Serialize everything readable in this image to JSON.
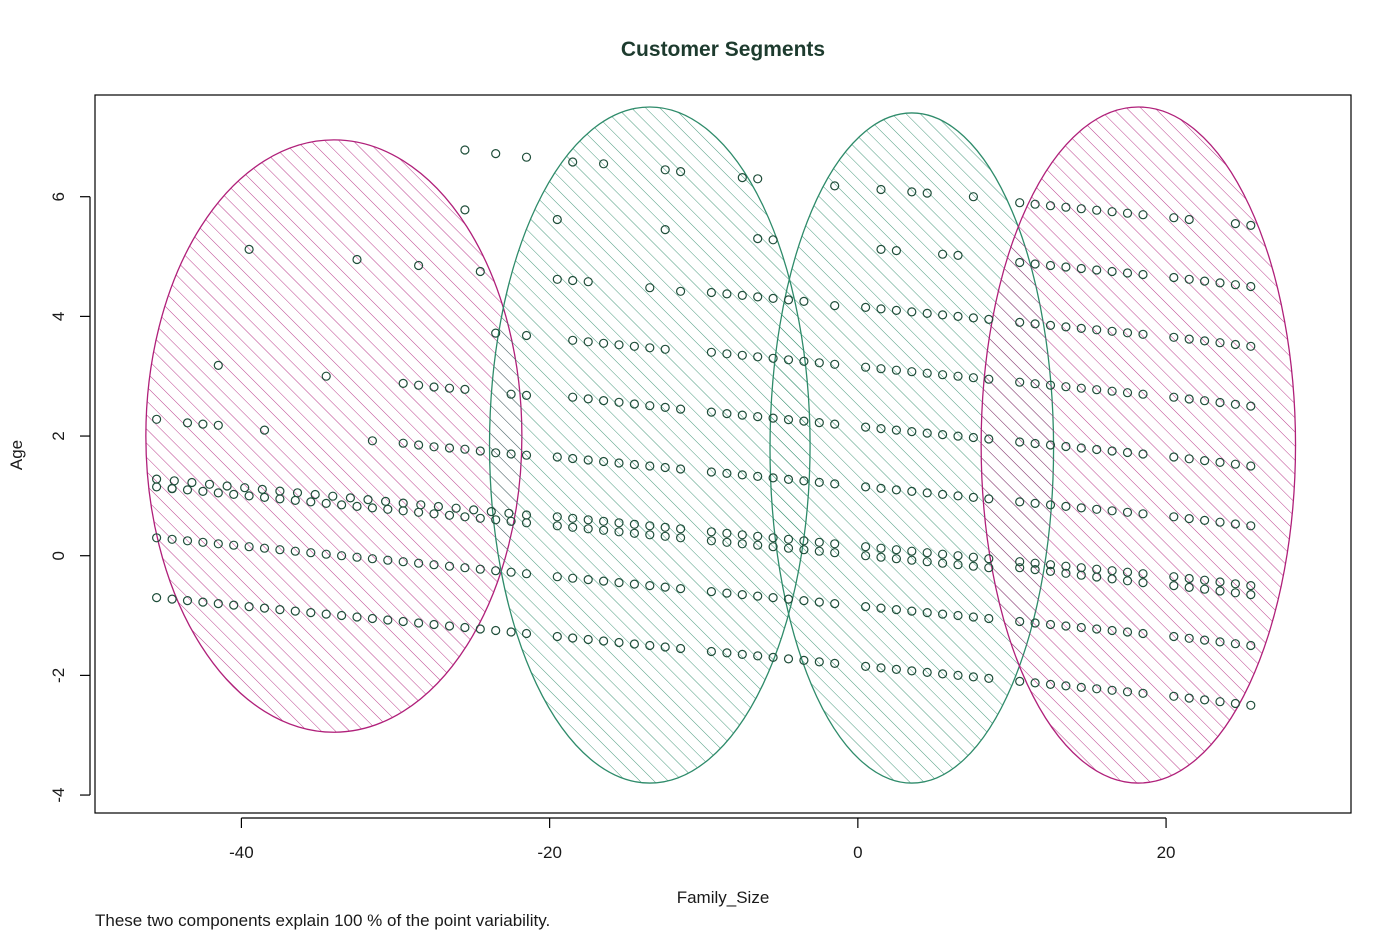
{
  "chart_data": {
    "type": "scatter",
    "title": "Customer Segments",
    "xlabel": "Family_Size",
    "ylabel": "Age",
    "xlim": [
      -49.5,
      32
    ],
    "ylim": [
      -4.3,
      7.7
    ],
    "x_ticks": [
      -40,
      -20,
      0,
      20
    ],
    "x_tick_labels": [
      "-40",
      "-20",
      "0",
      "20"
    ],
    "y_ticks": [
      -4,
      -2,
      0,
      2,
      4,
      6
    ],
    "y_tick_labels": [
      "-4",
      "-2",
      "0",
      "2",
      "4",
      "6"
    ],
    "grid": false,
    "caption": "These two components explain 100 % of the point variability.",
    "colors": {
      "cluster_magenta": "#b0207a",
      "cluster_green": "#2e8b6a",
      "points": "#1f4e3a",
      "axis": "#000000",
      "title": "#1d3b2e"
    },
    "clusters": [
      {
        "cx": -34,
        "cy": 2.0,
        "rx": 12.2,
        "ry": 4.95,
        "color": "#b0207a",
        "hatch_angle": 45
      },
      {
        "cx": -13.5,
        "cy": 1.85,
        "rx": 10.4,
        "ry": 5.65,
        "color": "#2e8b6a",
        "hatch_angle": 45
      },
      {
        "cx": 3.5,
        "cy": 1.8,
        "rx": 9.2,
        "ry": 5.6,
        "color": "#2e8b6a",
        "hatch_angle": 45
      },
      {
        "cx": 18.2,
        "cy": 1.85,
        "rx": 10.2,
        "ry": 5.65,
        "color": "#b0207a",
        "hatch_angle": 45
      }
    ],
    "point_groups": [
      {
        "x_start": -45.5,
        "x_end": -21.5,
        "n": 25,
        "y_start": -0.7,
        "y_end": -1.3
      },
      {
        "x_start": -45.5,
        "x_end": -21.5,
        "n": 25,
        "y_start": 0.3,
        "y_end": -0.3
      },
      {
        "x_start": -45.5,
        "x_end": -21.5,
        "n": 25,
        "y_start": 1.15,
        "y_end": 0.55
      },
      {
        "x_start": -45.5,
        "x_end": -21.5,
        "n": 22,
        "y_start": 1.28,
        "y_end": 0.68
      },
      {
        "x_start": -19.5,
        "x_end": -11.5,
        "n": 9,
        "y_start": -1.35,
        "y_end": -1.55
      },
      {
        "x_start": -19.5,
        "x_end": -11.5,
        "n": 9,
        "y_start": -0.35,
        "y_end": -0.55
      },
      {
        "x_start": -19.5,
        "x_end": -11.5,
        "n": 9,
        "y_start": 0.65,
        "y_end": 0.45
      },
      {
        "x_start": -19.5,
        "x_end": -11.5,
        "n": 9,
        "y_start": 0.5,
        "y_end": 0.3
      },
      {
        "x_start": -19.5,
        "x_end": -11.5,
        "n": 9,
        "y_start": 1.65,
        "y_end": 1.45
      },
      {
        "x_start": -18.5,
        "x_end": -11.5,
        "n": 8,
        "y_start": 2.65,
        "y_end": 2.45
      },
      {
        "x_start": -18.5,
        "x_end": -12.5,
        "n": 7,
        "y_start": 3.6,
        "y_end": 3.45
      },
      {
        "x_start": -9.5,
        "x_end": -1.5,
        "n": 9,
        "y_start": -1.6,
        "y_end": -1.8
      },
      {
        "x_start": -9.5,
        "x_end": -1.5,
        "n": 9,
        "y_start": -0.6,
        "y_end": -0.8
      },
      {
        "x_start": -9.5,
        "x_end": -1.5,
        "n": 9,
        "y_start": 0.4,
        "y_end": 0.2
      },
      {
        "x_start": -9.5,
        "x_end": -1.5,
        "n": 9,
        "y_start": 0.25,
        "y_end": 0.05
      },
      {
        "x_start": -9.5,
        "x_end": -1.5,
        "n": 9,
        "y_start": 1.4,
        "y_end": 1.2
      },
      {
        "x_start": -9.5,
        "x_end": -1.5,
        "n": 9,
        "y_start": 2.4,
        "y_end": 2.2
      },
      {
        "x_start": -9.5,
        "x_end": -1.5,
        "n": 9,
        "y_start": 3.4,
        "y_end": 3.2
      },
      {
        "x_start": -9.5,
        "x_end": -3.5,
        "n": 7,
        "y_start": 4.4,
        "y_end": 4.25
      },
      {
        "x_start": 0.5,
        "x_end": 8.5,
        "n": 9,
        "y_start": -1.85,
        "y_end": -2.05
      },
      {
        "x_start": 0.5,
        "x_end": 8.5,
        "n": 9,
        "y_start": -0.85,
        "y_end": -1.05
      },
      {
        "x_start": 0.5,
        "x_end": 8.5,
        "n": 9,
        "y_start": 0.15,
        "y_end": -0.05
      },
      {
        "x_start": 0.5,
        "x_end": 8.5,
        "n": 9,
        "y_start": 0.0,
        "y_end": -0.2
      },
      {
        "x_start": 0.5,
        "x_end": 8.5,
        "n": 9,
        "y_start": 1.15,
        "y_end": 0.95
      },
      {
        "x_start": 0.5,
        "x_end": 8.5,
        "n": 9,
        "y_start": 2.15,
        "y_end": 1.95
      },
      {
        "x_start": 0.5,
        "x_end": 8.5,
        "n": 9,
        "y_start": 3.15,
        "y_end": 2.95
      },
      {
        "x_start": 0.5,
        "x_end": 8.5,
        "n": 9,
        "y_start": 4.15,
        "y_end": 3.95
      },
      {
        "x_start": 10.5,
        "x_end": 18.5,
        "n": 9,
        "y_start": -2.1,
        "y_end": -2.3
      },
      {
        "x_start": 10.5,
        "x_end": 18.5,
        "n": 9,
        "y_start": -1.1,
        "y_end": -1.3
      },
      {
        "x_start": 10.5,
        "x_end": 18.5,
        "n": 9,
        "y_start": -0.1,
        "y_end": -0.3
      },
      {
        "x_start": 10.5,
        "x_end": 18.5,
        "n": 9,
        "y_start": -0.2,
        "y_end": -0.45
      },
      {
        "x_start": 10.5,
        "x_end": 18.5,
        "n": 9,
        "y_start": 0.9,
        "y_end": 0.7
      },
      {
        "x_start": 10.5,
        "x_end": 18.5,
        "n": 9,
        "y_start": 1.9,
        "y_end": 1.7
      },
      {
        "x_start": 10.5,
        "x_end": 18.5,
        "n": 9,
        "y_start": 2.9,
        "y_end": 2.7
      },
      {
        "x_start": 10.5,
        "x_end": 18.5,
        "n": 9,
        "y_start": 3.9,
        "y_end": 3.7
      },
      {
        "x_start": 10.5,
        "x_end": 18.5,
        "n": 9,
        "y_start": 4.9,
        "y_end": 4.7
      },
      {
        "x_start": 10.5,
        "x_end": 18.5,
        "n": 9,
        "y_start": 5.9,
        "y_end": 5.7
      },
      {
        "x_start": 20.5,
        "x_end": 25.5,
        "n": 6,
        "y_start": -2.35,
        "y_end": -2.5
      },
      {
        "x_start": 20.5,
        "x_end": 25.5,
        "n": 6,
        "y_start": -1.35,
        "y_end": -1.5
      },
      {
        "x_start": 20.5,
        "x_end": 25.5,
        "n": 6,
        "y_start": -0.35,
        "y_end": -0.5
      },
      {
        "x_start": 20.5,
        "x_end": 25.5,
        "n": 6,
        "y_start": -0.5,
        "y_end": -0.65
      },
      {
        "x_start": 20.5,
        "x_end": 25.5,
        "n": 6,
        "y_start": 0.65,
        "y_end": 0.5
      },
      {
        "x_start": 20.5,
        "x_end": 25.5,
        "n": 6,
        "y_start": 1.65,
        "y_end": 1.5
      },
      {
        "x_start": 20.5,
        "x_end": 25.5,
        "n": 6,
        "y_start": 2.65,
        "y_end": 2.5
      },
      {
        "x_start": 20.5,
        "x_end": 25.5,
        "n": 6,
        "y_start": 3.65,
        "y_end": 3.5
      },
      {
        "x_start": 20.5,
        "x_end": 25.5,
        "n": 6,
        "y_start": 4.65,
        "y_end": 4.5
      }
    ],
    "points": [
      [
        -45.5,
        2.28
      ],
      [
        -44.5,
        1.12
      ],
      [
        -43.5,
        2.22
      ],
      [
        -42.5,
        2.2
      ],
      [
        -41.5,
        2.18
      ],
      [
        -39.5,
        5.12
      ],
      [
        -38.5,
        2.1
      ],
      [
        -41.5,
        3.18
      ],
      [
        -32.5,
        4.95
      ],
      [
        -34.5,
        3.0
      ],
      [
        -31.5,
        1.92
      ],
      [
        -29.5,
        2.88
      ],
      [
        -28.5,
        2.85
      ],
      [
        -27.5,
        2.82
      ],
      [
        -26.5,
        2.8
      ],
      [
        -25.5,
        2.78
      ],
      [
        -29.5,
        1.88
      ],
      [
        -28.5,
        1.85
      ],
      [
        -27.5,
        1.82
      ],
      [
        -26.5,
        1.8
      ],
      [
        -25.5,
        1.78
      ],
      [
        -24.5,
        1.75
      ],
      [
        -23.5,
        1.72
      ],
      [
        -22.5,
        1.7
      ],
      [
        -21.5,
        1.68
      ],
      [
        -28.5,
        4.85
      ],
      [
        -25.5,
        6.78
      ],
      [
        -23.5,
        6.72
      ],
      [
        -21.5,
        6.66
      ],
      [
        -25.5,
        5.78
      ],
      [
        -24.5,
        4.75
      ],
      [
        -23.5,
        3.72
      ],
      [
        -22.5,
        2.7
      ],
      [
        -21.5,
        2.68
      ],
      [
        -21.5,
        3.68
      ],
      [
        -18.5,
        6.58
      ],
      [
        -16.5,
        6.55
      ],
      [
        -12.5,
        6.45
      ],
      [
        -11.5,
        6.42
      ],
      [
        -12.5,
        5.45
      ],
      [
        -19.5,
        5.62
      ],
      [
        -19.5,
        4.62
      ],
      [
        -18.5,
        4.6
      ],
      [
        -17.5,
        4.58
      ],
      [
        -13.5,
        4.48
      ],
      [
        -11.5,
        4.42
      ],
      [
        -7.5,
        6.32
      ],
      [
        -6.5,
        6.3
      ],
      [
        -6.5,
        5.3
      ],
      [
        -5.5,
        5.28
      ],
      [
        -1.5,
        6.18
      ],
      [
        -1.5,
        4.18
      ],
      [
        1.5,
        6.12
      ],
      [
        3.5,
        6.08
      ],
      [
        4.5,
        6.06
      ],
      [
        7.5,
        6.0
      ],
      [
        1.5,
        5.12
      ],
      [
        2.5,
        5.1
      ],
      [
        5.5,
        5.04
      ],
      [
        6.5,
        5.02
      ],
      [
        24.5,
        5.55
      ],
      [
        25.5,
        5.52
      ],
      [
        20.5,
        5.65
      ],
      [
        21.5,
        5.62
      ]
    ]
  }
}
